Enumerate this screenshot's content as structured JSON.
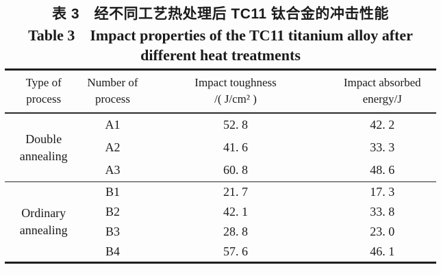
{
  "page": {
    "title_cn": "表 3　经不同工艺热处理后 TC11 钛合金的冲击性能",
    "title_en_line1": "Table 3　Impact properties of the TC11 titanium alloy after",
    "title_en_line2": "different heat treatments"
  },
  "table": {
    "headers": [
      {
        "line1": "Type of",
        "line2": "process"
      },
      {
        "line1": "Number of",
        "line2": "process"
      },
      {
        "line1": "Impact toughness",
        "line2": "/( J/cm² )"
      },
      {
        "line1": "Impact absorbed",
        "line2": "energy/J"
      }
    ],
    "groups": [
      {
        "label_line1": "Double",
        "label_line2": "annealing",
        "rows": [
          {
            "number": "A1",
            "toughness": "52. 8",
            "energy": "42. 2"
          },
          {
            "number": "A2",
            "toughness": "41. 6",
            "energy": "33. 3"
          },
          {
            "number": "A3",
            "toughness": "60. 8",
            "energy": "48. 6"
          }
        ]
      },
      {
        "label_line1": "Ordinary",
        "label_line2": "annealing",
        "rows": [
          {
            "number": "B1",
            "toughness": "21. 7",
            "energy": "17. 3"
          },
          {
            "number": "B2",
            "toughness": "42. 1",
            "energy": "33. 8"
          },
          {
            "number": "B3",
            "toughness": "28. 8",
            "energy": "23. 0"
          },
          {
            "number": "B4",
            "toughness": "57. 6",
            "energy": "46. 1"
          }
        ]
      }
    ]
  },
  "chart_data": {
    "type": "table",
    "title": "Table 3 Impact properties of the TC11 titanium alloy after different heat treatments",
    "title_cn": "表 3 经不同工艺热处理后 TC11 钛合金的冲击性能",
    "columns": [
      "Type of process",
      "Number of process",
      "Impact toughness /(J/cm²)",
      "Impact absorbed energy/J"
    ],
    "rows": [
      [
        "Double annealing",
        "A1",
        52.8,
        42.2
      ],
      [
        "Double annealing",
        "A2",
        41.6,
        33.3
      ],
      [
        "Double annealing",
        "A3",
        60.8,
        48.6
      ],
      [
        "Ordinary annealing",
        "B1",
        21.7,
        17.3
      ],
      [
        "Ordinary annealing",
        "B2",
        42.1,
        33.8
      ],
      [
        "Ordinary annealing",
        "B3",
        28.8,
        23.0
      ],
      [
        "Ordinary annealing",
        "B4",
        57.6,
        46.1
      ]
    ]
  }
}
